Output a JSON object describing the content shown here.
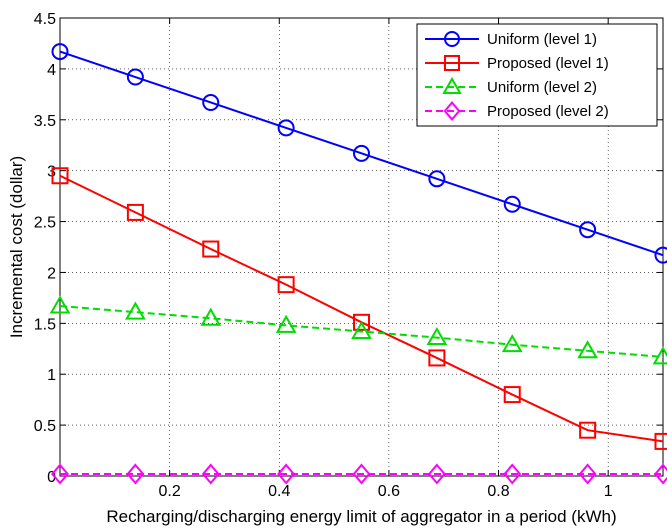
{
  "chart_data": {
    "type": "line",
    "title": "",
    "xlabel": "Recharging/discharging energy limit of aggregator in a period (kWh)",
    "ylabel": "Incremental cost (dollar)",
    "xlim": [
      0,
      1.1
    ],
    "ylim": [
      0,
      4.5
    ],
    "xticks": [
      0.2,
      0.4,
      0.6,
      0.8,
      1
    ],
    "xtick_labels": [
      "0.2",
      "0.4",
      "0.6",
      "0.8",
      "1"
    ],
    "yticks": [
      0,
      0.5,
      1,
      1.5,
      2,
      2.5,
      3,
      3.5,
      4,
      4.5
    ],
    "ytick_labels": [
      "0",
      "0.5",
      "1",
      "1.5",
      "2",
      "2.5",
      "3",
      "3.5",
      "4",
      "4.5"
    ],
    "grid": true,
    "legend_position": "top-right",
    "x": [
      0.0,
      0.1375,
      0.275,
      0.4125,
      0.55,
      0.6875,
      0.825,
      0.9625,
      1.1
    ],
    "series": [
      {
        "name": "Uniform (level 1)",
        "color": "#0000ff",
        "line_style": "solid",
        "marker": "circle",
        "values": [
          4.17,
          3.92,
          3.67,
          3.42,
          3.17,
          2.92,
          2.67,
          2.42,
          2.17
        ]
      },
      {
        "name": "Proposed (level 1)",
        "color": "#ff0000",
        "line_style": "solid",
        "marker": "square",
        "values": [
          2.95,
          2.59,
          2.23,
          1.88,
          1.51,
          1.16,
          0.8,
          0.45,
          0.34
        ]
      },
      {
        "name": "Uniform (level 2)",
        "color": "#00dd00",
        "line_style": "dashed",
        "marker": "triangle",
        "values": [
          1.67,
          1.61,
          1.55,
          1.48,
          1.42,
          1.36,
          1.29,
          1.23,
          1.17
        ]
      },
      {
        "name": "Proposed (level 2)",
        "color": "#ff00ff",
        "line_style": "dashed",
        "marker": "diamond",
        "values": [
          0.02,
          0.02,
          0.02,
          0.02,
          0.02,
          0.02,
          0.02,
          0.02,
          0.02
        ]
      }
    ]
  }
}
